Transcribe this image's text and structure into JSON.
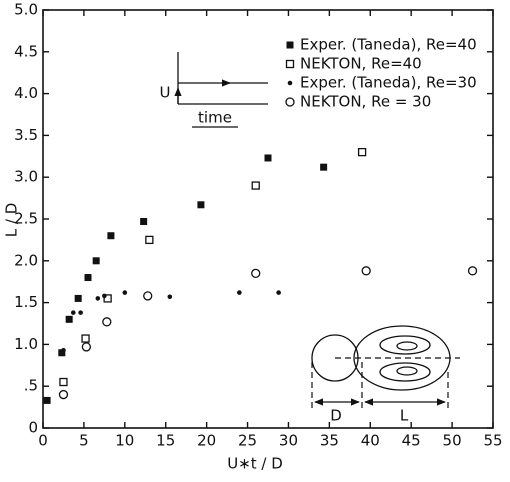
{
  "chart_data": {
    "type": "scatter",
    "x_label": "U∗t / D",
    "y_label": "L / D",
    "xlim": [
      0,
      55
    ],
    "xticks": [
      0,
      5,
      10,
      15,
      20,
      25,
      30,
      35,
      40,
      45,
      50,
      55
    ],
    "ylim": [
      0,
      5
    ],
    "yticks": [
      0,
      {
        "value": 0.5,
        "label": ".5"
      },
      {
        "value": 1,
        "label": "1.0"
      },
      {
        "value": 1.5,
        "label": "1.5"
      },
      {
        "value": 2,
        "label": "2.0"
      },
      {
        "value": 2.5,
        "label": "2.5"
      },
      {
        "value": 3,
        "label": "3.0"
      },
      {
        "value": 3.5,
        "label": "3.5"
      },
      {
        "value": 4,
        "label": "4.0"
      },
      {
        "value": 4.5,
        "label": "4.5"
      },
      {
        "value": 5,
        "label": "5.0"
      }
    ],
    "series": [
      {
        "name": "Exper. (Taneda), Re=40",
        "marker": "filled-square",
        "color": "#111111",
        "x": [
          0.5,
          2.3,
          3.2,
          4.3,
          5.5,
          6.5,
          8.3,
          12.3,
          19.3,
          27.5,
          34.3
        ],
        "values": [
          0.33,
          0.9,
          1.3,
          1.55,
          1.8,
          2.0,
          2.3,
          2.47,
          2.67,
          3.23,
          3.12
        ]
      },
      {
        "name": "NEKTON, Re=40",
        "marker": "open-square",
        "color": "#111111",
        "x": [
          2.5,
          5.2,
          7.9,
          13,
          26,
          39
        ],
        "values": [
          0.55,
          1.07,
          1.55,
          2.25,
          2.9,
          3.3
        ]
      },
      {
        "name": "Exper. (Taneda), Re=30",
        "marker": "dot",
        "color": "#111111",
        "x": [
          0.6,
          2.5,
          3.7,
          4.6,
          6.7,
          7.5,
          10,
          15.5,
          24,
          28.8
        ],
        "values": [
          0.32,
          0.93,
          1.38,
          1.38,
          1.55,
          1.58,
          1.62,
          1.57,
          1.62,
          1.62
        ]
      },
      {
        "name": "NEKTON, Re = 30",
        "marker": "open-circle",
        "color": "#111111",
        "x": [
          2.5,
          5.3,
          7.8,
          12.8,
          26,
          39.5,
          52.5
        ],
        "values": [
          0.4,
          0.97,
          1.27,
          1.58,
          1.85,
          1.88,
          1.88
        ]
      }
    ],
    "inset_labels": {
      "velocity": "U",
      "time": "time",
      "diameter": "D",
      "length": "L"
    }
  }
}
